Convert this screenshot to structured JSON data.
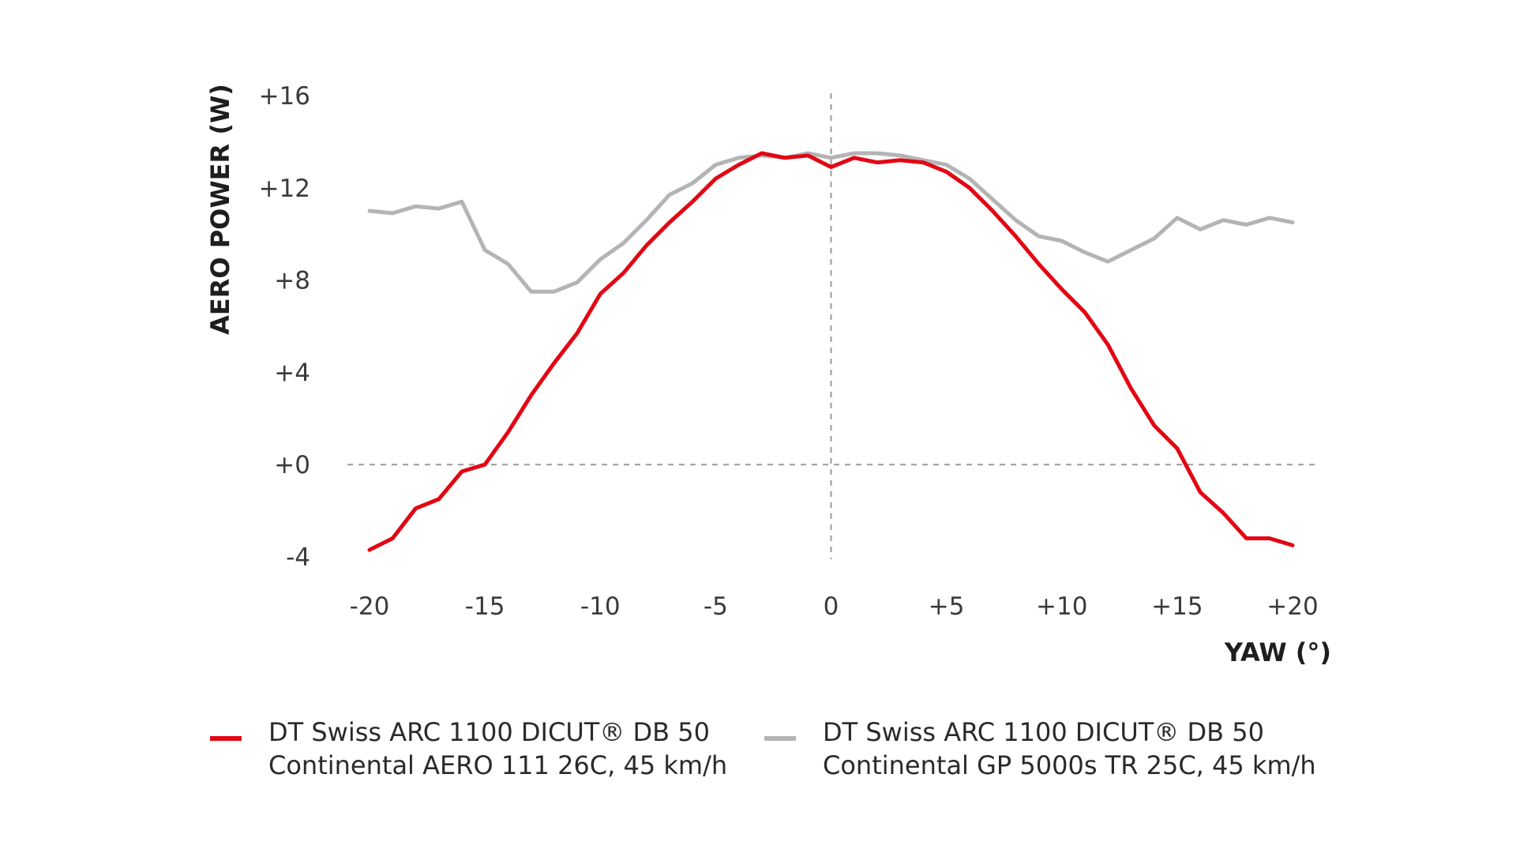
{
  "chart_data": {
    "type": "line",
    "ylabel": "AERO POWER (W)",
    "xlabel": "YAW (°)",
    "xlim": [
      -20,
      20
    ],
    "ylim": [
      -4,
      16
    ],
    "x_ticks": [
      "-20",
      "-15",
      "-10",
      "-5",
      "0",
      "+5",
      "+10",
      "+15",
      "+20"
    ],
    "x_tick_values": [
      -20,
      -15,
      -10,
      -5,
      0,
      5,
      10,
      15,
      20
    ],
    "y_ticks": [
      "+16",
      "+12",
      "+8",
      "+4",
      "+0",
      "-4"
    ],
    "y_tick_values": [
      16,
      12,
      8,
      4,
      0,
      -4
    ],
    "reference_lines": {
      "x": 0,
      "y": 0,
      "style": "dashed"
    },
    "grid": false,
    "legend_placement": "bottom",
    "x": [
      -20,
      -19,
      -18,
      -17,
      -16,
      -15,
      -14,
      -13,
      -12,
      -11,
      -10,
      -9,
      -8,
      -7,
      -6,
      -5,
      -4,
      -3,
      -2,
      -1,
      0,
      1,
      2,
      3,
      4,
      5,
      6,
      7,
      8,
      9,
      10,
      11,
      12,
      13,
      14,
      15,
      16,
      17,
      18,
      19,
      20
    ],
    "series": [
      {
        "name_line1": "DT Swiss ARC 1100 DICUT® DB 50",
        "name_line2": "Continental AERO 111 26C, 45 km/h",
        "color": "#e30613",
        "values": [
          -3.7,
          -3.2,
          -1.9,
          -1.5,
          -0.3,
          0.0,
          1.4,
          3.0,
          4.4,
          5.7,
          7.4,
          8.3,
          9.5,
          10.5,
          11.4,
          12.4,
          13.0,
          13.5,
          13.3,
          13.4,
          12.9,
          13.3,
          13.1,
          13.2,
          13.1,
          12.7,
          12.0,
          11.0,
          9.9,
          8.7,
          7.6,
          6.6,
          5.2,
          3.3,
          1.7,
          0.7,
          -1.2,
          -2.1,
          -3.2,
          -3.2,
          -3.5
        ]
      },
      {
        "name_line1": "DT Swiss ARC 1100 DICUT® DB 50",
        "name_line2": "Continental GP 5000s TR 25C, 45 km/h",
        "color": "#b4b4b4",
        "values": [
          11.0,
          10.9,
          11.2,
          11.1,
          11.4,
          9.3,
          8.7,
          7.5,
          7.5,
          7.9,
          8.9,
          9.6,
          10.6,
          11.7,
          12.2,
          13.0,
          13.3,
          13.4,
          13.3,
          13.5,
          13.3,
          13.5,
          13.5,
          13.4,
          13.2,
          13.0,
          12.4,
          11.5,
          10.6,
          9.9,
          9.7,
          9.2,
          8.8,
          9.3,
          9.8,
          10.7,
          10.2,
          10.6,
          10.4,
          10.7,
          10.5
        ]
      }
    ]
  }
}
